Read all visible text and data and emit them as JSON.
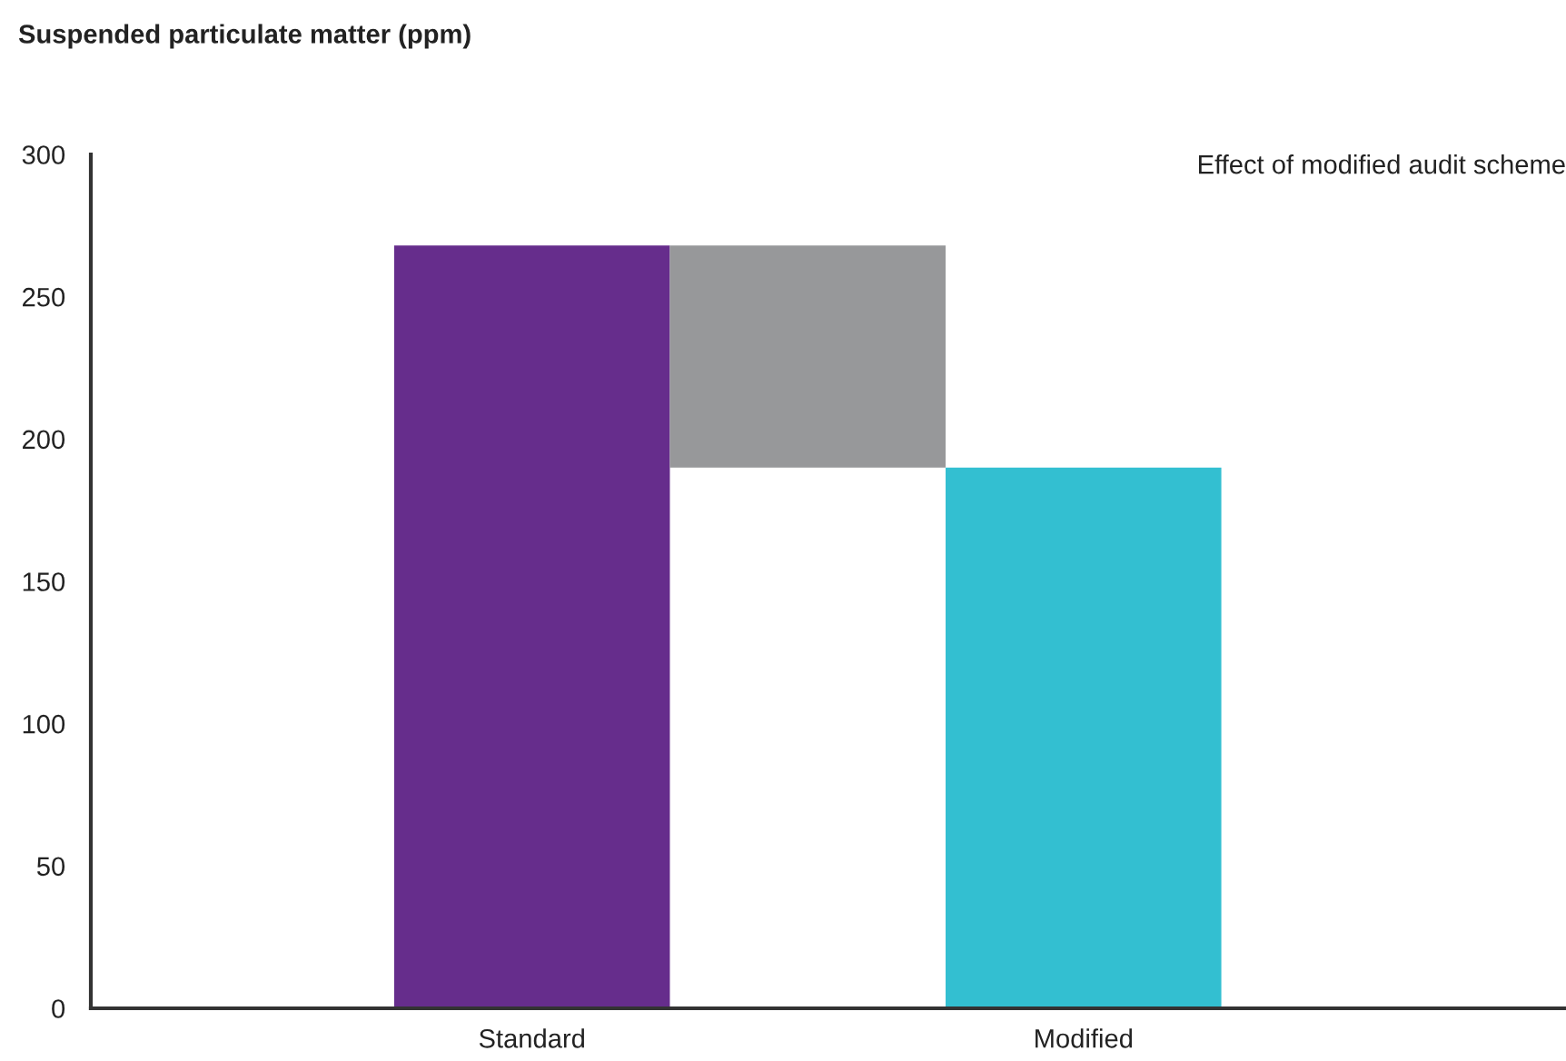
{
  "chart_data": {
    "type": "bar",
    "title": "Suspended particulate matter (ppm)",
    "categories": [
      "Standard",
      null,
      "Modified"
    ],
    "values": [
      268,
      78,
      190
    ],
    "base": [
      0,
      190,
      0
    ],
    "colors": [
      "#662d8c",
      "#97989a",
      "#33bfd1"
    ],
    "ylim": [
      0,
      300
    ],
    "yticks": [
      0,
      50,
      100,
      150,
      200,
      250,
      300
    ],
    "grid": false,
    "legend": false,
    "annotations": [
      "Effect of modified audit scheme"
    ]
  }
}
